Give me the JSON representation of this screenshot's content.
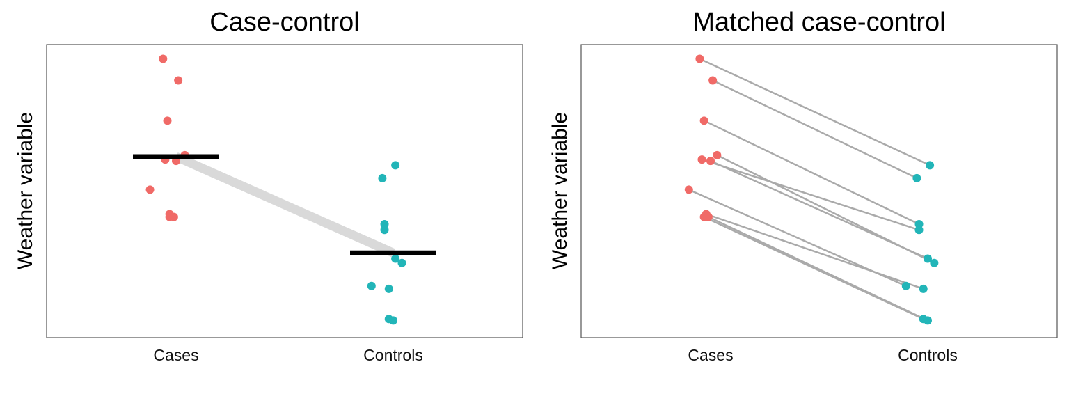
{
  "colors": {
    "cases": "#F06A67",
    "controls": "#22B5B8",
    "mean_bar": "#000000",
    "mean_link": "#D9D9D9",
    "pair_line": "#AAAAAA",
    "frame": "#555555"
  },
  "chart_data": [
    {
      "type": "scatter",
      "title": "Case-control",
      "xlabel": "",
      "ylabel": "Weather variable",
      "categories": [
        "Cases",
        "Controls"
      ],
      "ylim": [
        0,
        100
      ],
      "grid": false,
      "show_means": true,
      "points": [
        {
          "group": "Cases",
          "jitter": -0.06,
          "y": 96.0
        },
        {
          "group": "Cases",
          "jitter": 0.01,
          "y": 88.5
        },
        {
          "group": "Cases",
          "jitter": -0.04,
          "y": 74.5
        },
        {
          "group": "Cases",
          "jitter": 0.04,
          "y": 62.5
        },
        {
          "group": "Cases",
          "jitter": -0.05,
          "y": 61.0
        },
        {
          "group": "Cases",
          "jitter": 0.0,
          "y": 60.5
        },
        {
          "group": "Cases",
          "jitter": -0.12,
          "y": 50.5
        },
        {
          "group": "Cases",
          "jitter": -0.03,
          "y": 42.0
        },
        {
          "group": "Cases",
          "jitter": -0.03,
          "y": 41.0
        },
        {
          "group": "Cases",
          "jitter": -0.01,
          "y": 41.0
        },
        {
          "group": "Controls",
          "jitter": 0.01,
          "y": 59.0
        },
        {
          "group": "Controls",
          "jitter": -0.05,
          "y": 54.5
        },
        {
          "group": "Controls",
          "jitter": -0.04,
          "y": 38.5
        },
        {
          "group": "Controls",
          "jitter": -0.04,
          "y": 36.5
        },
        {
          "group": "Controls",
          "jitter": 0.01,
          "y": 26.5
        },
        {
          "group": "Controls",
          "jitter": 0.04,
          "y": 25.0
        },
        {
          "group": "Controls",
          "jitter": -0.1,
          "y": 17.0
        },
        {
          "group": "Controls",
          "jitter": -0.02,
          "y": 16.0
        },
        {
          "group": "Controls",
          "jitter": -0.02,
          "y": 5.5
        },
        {
          "group": "Controls",
          "jitter": 0.0,
          "y": 5.0
        }
      ],
      "means": {
        "Cases": 62.0,
        "Controls": 28.5
      }
    },
    {
      "type": "scatter",
      "title": "Matched case-control",
      "xlabel": "",
      "ylabel": "Weather variable",
      "categories": [
        "Cases",
        "Controls"
      ],
      "ylim": [
        0,
        100
      ],
      "grid": false,
      "paired": true,
      "pairs": [
        {
          "case_jitter": -0.05,
          "case_y": 96.0,
          "control_jitter": 0.01,
          "control_y": 59.0
        },
        {
          "case_jitter": 0.01,
          "case_y": 88.5,
          "control_jitter": -0.05,
          "control_y": 54.5
        },
        {
          "case_jitter": -0.03,
          "case_y": 74.5,
          "control_jitter": -0.04,
          "control_y": 38.5
        },
        {
          "case_jitter": 0.03,
          "case_y": 62.5,
          "control_jitter": 0.03,
          "control_y": 25.0
        },
        {
          "case_jitter": -0.04,
          "case_y": 61.0,
          "control_jitter": -0.04,
          "control_y": 36.5
        },
        {
          "case_jitter": 0.0,
          "case_y": 60.5,
          "control_jitter": 0.0,
          "control_y": 26.5
        },
        {
          "case_jitter": -0.1,
          "case_y": 50.5,
          "control_jitter": -0.1,
          "control_y": 17.0
        },
        {
          "case_jitter": -0.02,
          "case_y": 42.0,
          "control_jitter": -0.02,
          "control_y": 16.0
        },
        {
          "case_jitter": -0.03,
          "case_y": 41.0,
          "control_jitter": -0.02,
          "control_y": 5.5
        },
        {
          "case_jitter": -0.01,
          "case_y": 41.0,
          "control_jitter": 0.0,
          "control_y": 5.0
        }
      ]
    }
  ]
}
